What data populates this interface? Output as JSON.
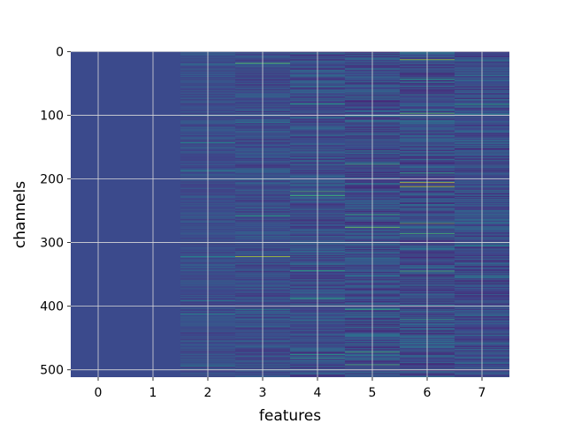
{
  "chart_data": {
    "type": "heatmap",
    "title": "",
    "xlabel": "features",
    "ylabel": "channels",
    "x_categories": [
      0,
      1,
      2,
      3,
      4,
      5,
      6,
      7
    ],
    "x_tick_labels": [
      "0",
      "1",
      "2",
      "3",
      "4",
      "5",
      "6",
      "7"
    ],
    "y_tick_values": [
      0,
      100,
      200,
      300,
      400,
      500
    ],
    "y_tick_labels": [
      "0",
      "100",
      "200",
      "300",
      "400",
      "500"
    ],
    "xlim": [
      -0.5,
      7.5
    ],
    "ylim": [
      511.5,
      -0.5
    ],
    "n_channels": 512,
    "grid": true,
    "colormap": "viridis",
    "background_color": "#3b4a8c",
    "column_activity": [
      0.02,
      0.04,
      0.22,
      0.3,
      0.38,
      0.45,
      0.5,
      0.42
    ],
    "notable_cells": [
      {
        "feature": 3,
        "channel": 322,
        "value": 0.9
      },
      {
        "feature": 3,
        "channel": 18,
        "value": 0.75
      },
      {
        "feature": 3,
        "channel": 258,
        "value": 0.6
      },
      {
        "feature": 4,
        "channel": 220,
        "value": 0.7
      },
      {
        "feature": 4,
        "channel": 476,
        "value": 0.6
      },
      {
        "feature": 5,
        "channel": 276,
        "value": 0.8
      },
      {
        "feature": 5,
        "channel": 492,
        "value": 0.7
      },
      {
        "feature": 5,
        "channel": 405,
        "value": 0.65
      },
      {
        "feature": 6,
        "channel": 206,
        "value": 0.95
      },
      {
        "feature": 6,
        "channel": 212,
        "value": 0.9
      },
      {
        "feature": 6,
        "channel": 13,
        "value": 0.85
      },
      {
        "feature": 6,
        "channel": 270,
        "value": 0.75
      },
      {
        "feature": 6,
        "channel": 345,
        "value": 0.7
      },
      {
        "feature": 7,
        "channel": 83,
        "value": 0.6
      },
      {
        "feature": 2,
        "channel": 322,
        "value": 0.5
      },
      {
        "feature": 2,
        "channel": 412,
        "value": 0.5
      }
    ]
  }
}
